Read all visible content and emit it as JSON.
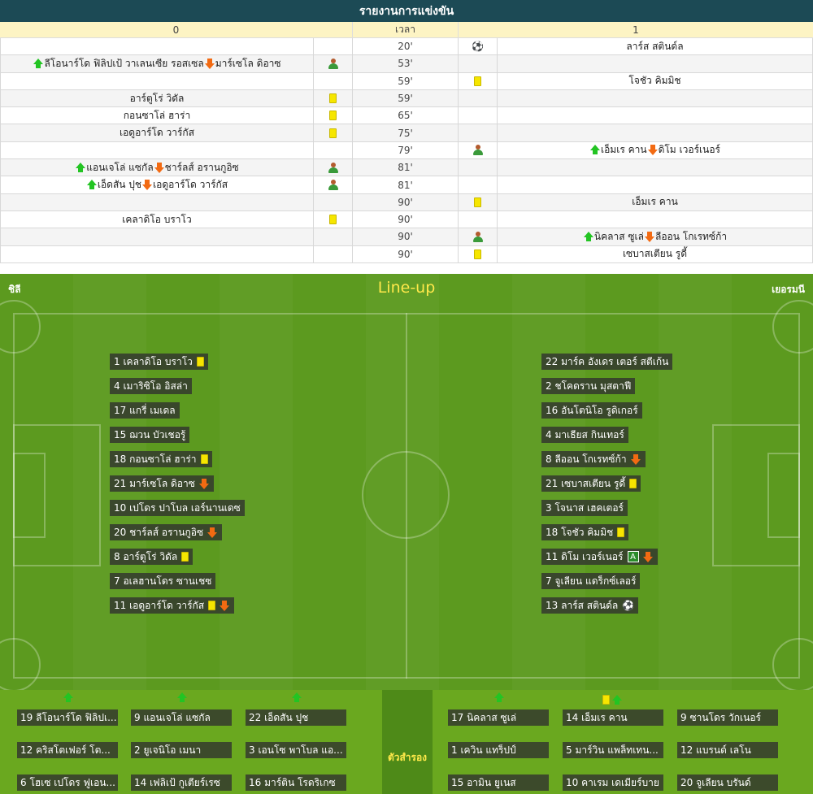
{
  "report": {
    "title": "รายงานการแข่งขัน",
    "col_home": "0",
    "col_time": "เวลา",
    "col_away": "1",
    "events": [
      {
        "home": "",
        "home_icon": "",
        "time": "20'",
        "away_icon": "goal",
        "away": "ลาร์ส สตินด์ล"
      },
      {
        "home": "ลีโอนาร์โด ฟิลิปเป้ วาเลนเซีย รอสเซล|มาร์เซโล ดิอาซ",
        "home_icon": "sub",
        "time": "53'",
        "away_icon": "",
        "away": ""
      },
      {
        "home": "",
        "home_icon": "",
        "time": "59'",
        "away_icon": "yellow",
        "away": "โจชัว คิมมิช"
      },
      {
        "home": "อาร์ตูโร่ วิดัล",
        "home_icon": "yellow",
        "time": "59'",
        "away_icon": "",
        "away": ""
      },
      {
        "home": "กอนซาโล่ ฮาร่า",
        "home_icon": "yellow",
        "time": "65'",
        "away_icon": "",
        "away": ""
      },
      {
        "home": "เอดูอาร์โด วาร์กัส",
        "home_icon": "yellow",
        "time": "75'",
        "away_icon": "",
        "away": ""
      },
      {
        "home": "",
        "home_icon": "",
        "time": "79'",
        "away_icon": "sub",
        "away": "เอ็มเร คาน|ดิโม เวอร์เนอร์"
      },
      {
        "home": "แอนเจโล่ แซกัล|ชาร์ลส์ อรานกูอิซ",
        "home_icon": "sub",
        "time": "81'",
        "away_icon": "",
        "away": ""
      },
      {
        "home": "เอ็ดสัน ปุช|เอดูอาร์โด วาร์กัส",
        "home_icon": "sub",
        "time": "81'",
        "away_icon": "",
        "away": ""
      },
      {
        "home": "",
        "home_icon": "",
        "time": "90'",
        "away_icon": "yellow",
        "away": "เอ็มเร คาน"
      },
      {
        "home": "เคลาดิโอ บราโว",
        "home_icon": "yellow",
        "time": "90'",
        "away_icon": "",
        "away": ""
      },
      {
        "home": "",
        "home_icon": "",
        "time": "90'",
        "away_icon": "sub",
        "away": "นิคลาส ซูเล่|ลีออน โกเรทซ์ก้า"
      },
      {
        "home": "",
        "home_icon": "",
        "time": "90'",
        "away_icon": "yellow",
        "away": "เซบาสเตียน รูดี้"
      }
    ]
  },
  "lineup": {
    "title": "Line-up",
    "home_team": "ชิลี",
    "away_team": "เยอรมนี",
    "subs_label": "ตัวสำรอง",
    "home_players": [
      {
        "label": "1 เคลาดิโอ บราโว",
        "marks": [
          "yellow"
        ]
      },
      {
        "label": "4 เมาริซิโอ อิสล่า",
        "marks": []
      },
      {
        "label": "17 แกรี่ เมเดล",
        "marks": []
      },
      {
        "label": "15 ฌวน บัวเชอรู้",
        "marks": []
      },
      {
        "label": "18 กอนซาโล่ ฮาร่า",
        "marks": [
          "yellow"
        ]
      },
      {
        "label": "21 มาร์เซโล ดิอาซ",
        "marks": [
          "out"
        ]
      },
      {
        "label": "10 เปโดร ปาโบล เอร์นานเดซ",
        "marks": []
      },
      {
        "label": "20 ชาร์ลส์ อรานกูอิซ",
        "marks": [
          "out"
        ]
      },
      {
        "label": "8 อาร์ตูโร่ วิดัล",
        "marks": [
          "yellow"
        ]
      },
      {
        "label": "7 อเลฮานโดร ซานเชซ",
        "marks": []
      },
      {
        "label": "11 เอดูอาร์โด วาร์กัส",
        "marks": [
          "yellow",
          "out"
        ]
      }
    ],
    "away_players": [
      {
        "label": "22 มาร์ค อังเดร เตอร์ สตีเก้น",
        "marks": []
      },
      {
        "label": "2 ชโคดราน มุสตาฟี",
        "marks": []
      },
      {
        "label": "16 อันโตนิโอ รูดิเกอร์",
        "marks": []
      },
      {
        "label": "4 มาเธียส กินเทอร์",
        "marks": []
      },
      {
        "label": "8 ลีออน โกเรทซ์ก้า",
        "marks": [
          "out"
        ]
      },
      {
        "label": "21 เซบาสเตียน รูดี้",
        "marks": [
          "yellow"
        ]
      },
      {
        "label": "3 โจนาส เฮคเตอร์",
        "marks": []
      },
      {
        "label": "18 โจชัว คิมมิช",
        "marks": [
          "yellow"
        ]
      },
      {
        "label": "11 ดิโม เวอร์เนอร์",
        "marks": [
          "captain",
          "out"
        ]
      },
      {
        "label": "7 จูเลียน แดร็กซ์เลอร์",
        "marks": []
      },
      {
        "label": "13 ลาร์ส สตินด์ล",
        "marks": [
          "goal"
        ]
      }
    ],
    "captain_mark": "A",
    "home_subs": [
      {
        "label": "19 ลีโอนาร์โด ฟิลิปเ...",
        "marks": [
          "in"
        ]
      },
      {
        "label": "9 แอนเจโล่ แซกัล",
        "marks": [
          "in"
        ]
      },
      {
        "label": "22 เอ็ดสัน ปุช",
        "marks": [
          "in"
        ]
      },
      {
        "label": "12 คริสโตเฟอร์ โต...",
        "marks": []
      },
      {
        "label": "2 ยูเจนิโอ เมนา",
        "marks": []
      },
      {
        "label": "3 เอนโซ พาโบล แอ...",
        "marks": []
      },
      {
        "label": "6 โฮเซ เปโดร ฟูเอน...",
        "marks": []
      },
      {
        "label": "14 เฟลิเป้ กูเตียร์เรซ",
        "marks": []
      },
      {
        "label": "16 มาร์ติน โรดริเกซ",
        "marks": []
      }
    ],
    "away_subs": [
      {
        "label": "17 นิคลาส ซูเล่",
        "marks": [
          "in"
        ]
      },
      {
        "label": "14 เอ็มเร คาน",
        "marks": [
          "yellow",
          "in"
        ]
      },
      {
        "label": "9 ซานโดร วักเนอร์",
        "marks": []
      },
      {
        "label": "1 เควิน แทร็ปป์",
        "marks": []
      },
      {
        "label": "5 มาร์วิน แพล็ทเทน...",
        "marks": []
      },
      {
        "label": "12 แบรนด์ เลโน",
        "marks": []
      },
      {
        "label": "15 อามิน ยูเนส",
        "marks": []
      },
      {
        "label": "10 คาเรม เดเมียร์บาย",
        "marks": []
      },
      {
        "label": "20 จูเลียน บรันด์",
        "marks": []
      }
    ]
  },
  "colors": {
    "header_bg": "#1c4a55",
    "subheader_bg": "#fdf4c4",
    "pitch": "#5c9a1f",
    "title_yellow": "#ffe94a",
    "arrow_in": "#23c423",
    "arrow_out": "#f26a12"
  }
}
